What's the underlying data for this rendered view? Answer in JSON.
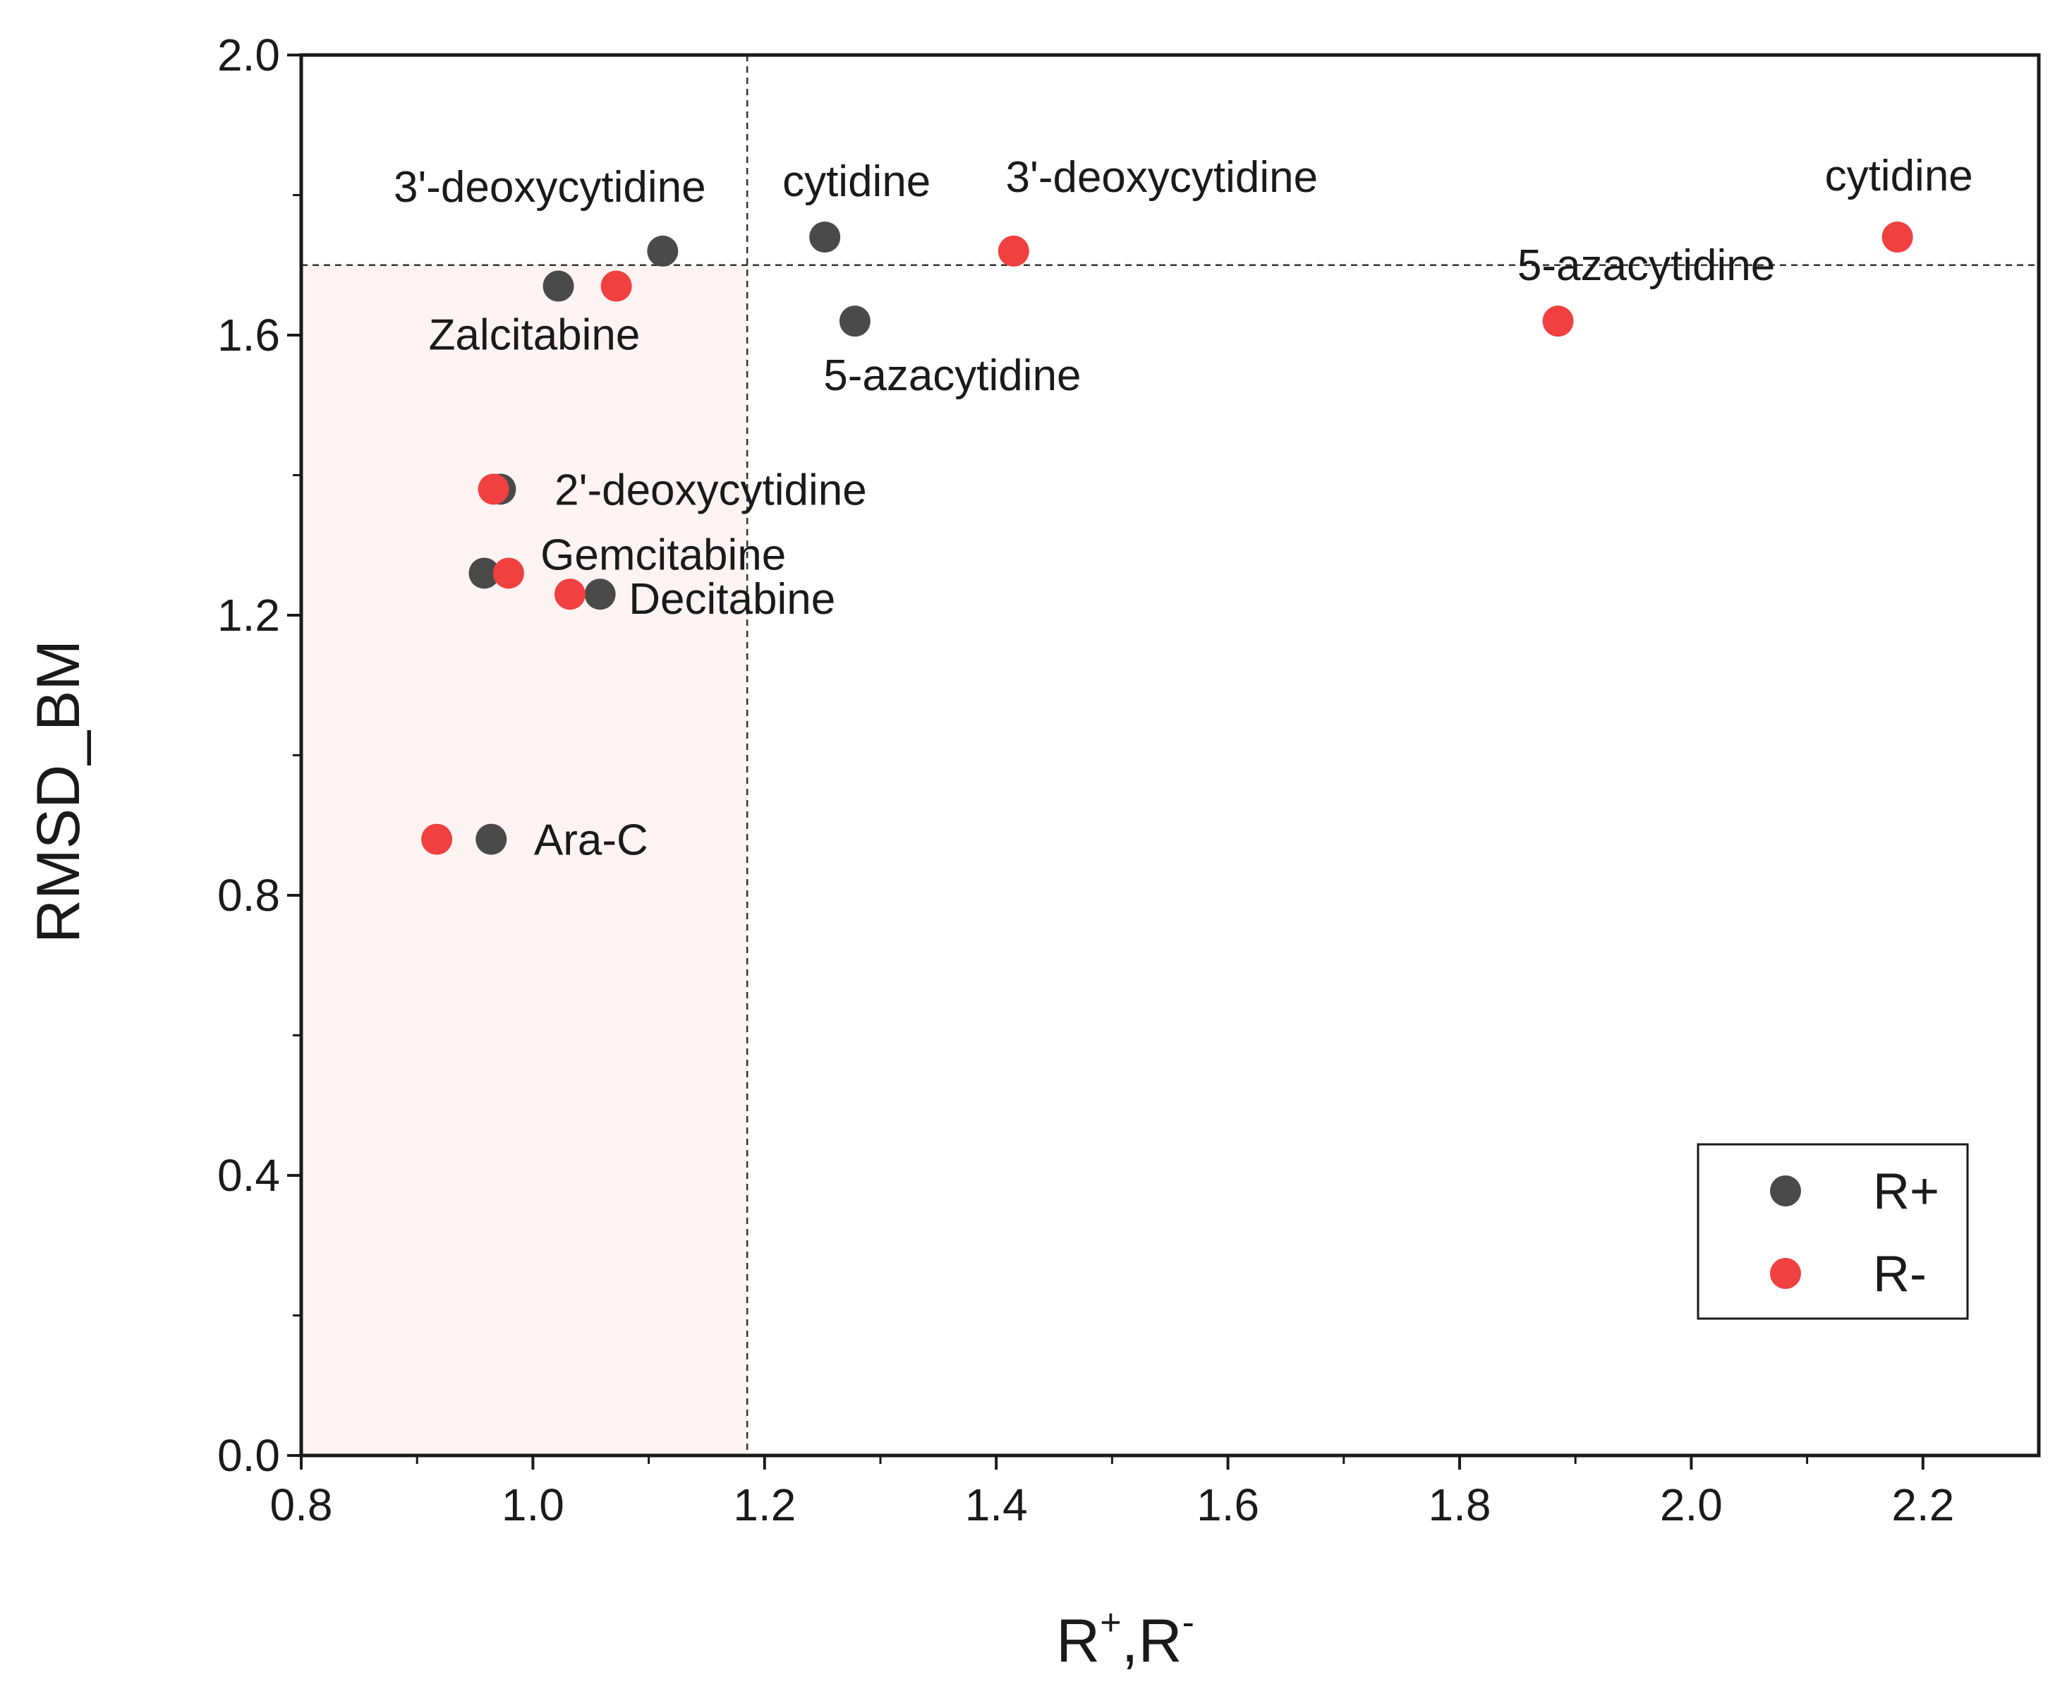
{
  "chart_data": {
    "type": "scatter",
    "title": "",
    "xlabel": "R+,R-",
    "xlabel_parts": {
      "base1": "R",
      "sup1": "+",
      "sep": ",",
      "base2": "R",
      "sup2": "-"
    },
    "ylabel": "RMSD_BM",
    "xlim": [
      0.8,
      2.3
    ],
    "ylim": [
      0.0,
      2.0
    ],
    "x_ticks": [
      0.8,
      1.0,
      1.2,
      1.4,
      1.6,
      1.8,
      2.0,
      2.2
    ],
    "x_tick_labels": [
      "0.8",
      "1.0",
      "1.2",
      "1.4",
      "1.6",
      "1.8",
      "2.0",
      "2.2"
    ],
    "y_ticks": [
      0.0,
      0.4,
      0.8,
      1.2,
      1.6,
      2.0
    ],
    "y_tick_labels": [
      "0.0",
      "0.4",
      "0.8",
      "1.2",
      "1.6",
      "2.0"
    ],
    "reference_lines": {
      "x": 1.185,
      "y": 1.7
    },
    "highlight_region": {
      "x": [
        0.8,
        1.185
      ],
      "y": [
        0.0,
        1.7
      ],
      "color": "#fdf3f3"
    },
    "legend": {
      "position": "bottom-right"
    },
    "series": [
      {
        "name": "R+",
        "color": "#4a4a4a",
        "points": [
          {
            "x": 1.112,
            "y": 1.72,
            "label": ""
          },
          {
            "x": 1.022,
            "y": 1.67,
            "label": ""
          },
          {
            "x": 1.252,
            "y": 1.74,
            "label": "cytidine"
          },
          {
            "x": 1.278,
            "y": 1.62,
            "label": "5-azacytidine"
          },
          {
            "x": 0.972,
            "y": 1.38,
            "label": ""
          },
          {
            "x": 0.958,
            "y": 1.26,
            "label": ""
          },
          {
            "x": 1.058,
            "y": 1.23,
            "label": ""
          },
          {
            "x": 0.964,
            "y": 0.88,
            "label": ""
          }
        ]
      },
      {
        "name": "R-",
        "color": "#f04040",
        "points": [
          {
            "x": 1.072,
            "y": 1.67,
            "label": ""
          },
          {
            "x": 1.415,
            "y": 1.72,
            "label": "3'-deoxycytidine"
          },
          {
            "x": 1.885,
            "y": 1.62,
            "label": "5-azacytidine"
          },
          {
            "x": 2.178,
            "y": 1.74,
            "label": "cytidine"
          },
          {
            "x": 0.966,
            "y": 1.38,
            "label": ""
          },
          {
            "x": 0.979,
            "y": 1.26,
            "label": ""
          },
          {
            "x": 1.032,
            "y": 1.23,
            "label": ""
          },
          {
            "x": 0.917,
            "y": 0.88,
            "label": ""
          }
        ]
      }
    ],
    "shared_labels": [
      {
        "text": "3'-deoxycytidine",
        "x": 1.112,
        "y": 1.72
      },
      {
        "text": "Zalcitabine",
        "x": 1.047,
        "y": 1.67
      },
      {
        "text": "2'-deoxycytidine",
        "x": 0.97,
        "y": 1.38
      },
      {
        "text": "Gemcitabine",
        "x": 0.97,
        "y": 1.26
      },
      {
        "text": "Decitabine",
        "x": 1.045,
        "y": 1.23
      },
      {
        "text": "Ara-C",
        "x": 0.94,
        "y": 0.88
      }
    ]
  }
}
